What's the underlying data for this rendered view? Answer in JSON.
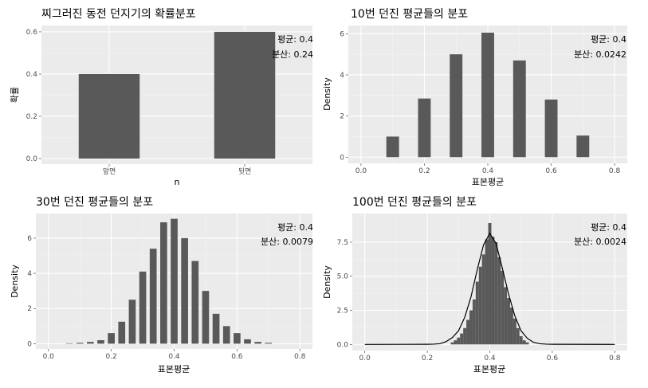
{
  "chart_data": [
    {
      "type": "bar",
      "title": "찌그러진 동전 던지기의 확률분포",
      "xlabel": "n",
      "ylabel": "확률",
      "categories": [
        "앞면",
        "뒷면"
      ],
      "values": [
        0.4,
        0.6
      ],
      "ylim": [
        0,
        0.63
      ],
      "yticks": [
        0.0,
        0.2,
        0.4,
        0.6
      ],
      "ytick_labels": [
        "0.0",
        "0.2",
        "0.4",
        "0.6"
      ],
      "annotations": [
        "평균: 0.4",
        "분산: 0.24"
      ],
      "grid": true
    },
    {
      "type": "bar",
      "title": "10번 던진 평균들의 분포",
      "xlabel": "표본평균",
      "ylabel": "Density",
      "x": [
        0.1,
        0.2,
        0.3,
        0.4,
        0.5,
        0.6,
        0.7
      ],
      "values": [
        1.0,
        2.85,
        5.0,
        6.05,
        4.7,
        2.8,
        1.05
      ],
      "bar_width": 0.04,
      "xlim": [
        -0.04,
        0.84
      ],
      "ylim": [
        -0.3,
        6.4
      ],
      "xticks": [
        0.0,
        0.2,
        0.4,
        0.6,
        0.8
      ],
      "xtick_labels": [
        "0.0",
        "0.2",
        "0.4",
        "0.6",
        "0.8"
      ],
      "yticks": [
        0,
        2,
        4,
        6
      ],
      "ytick_labels": [
        "0",
        "2",
        "4",
        "6"
      ],
      "annotations": [
        "평균: 0.4",
        "분산: 0.0242"
      ],
      "grid": true
    },
    {
      "type": "bar",
      "title": "30번 던진 평균들의 분포",
      "xlabel": "표본평균",
      "ylabel": "Density",
      "x": [
        0.0667,
        0.1,
        0.1333,
        0.1667,
        0.2,
        0.2333,
        0.2667,
        0.3,
        0.3333,
        0.3667,
        0.4,
        0.4333,
        0.4667,
        0.5,
        0.5333,
        0.5667,
        0.6,
        0.6333,
        0.6667,
        0.7
      ],
      "values": [
        0.02,
        0.05,
        0.1,
        0.2,
        0.6,
        1.25,
        2.5,
        4.1,
        5.4,
        6.9,
        7.1,
        6.0,
        4.7,
        3.0,
        1.7,
        1.0,
        0.6,
        0.25,
        0.1,
        0.05
      ],
      "bar_width": 0.022,
      "xlim": [
        -0.04,
        0.84
      ],
      "ylim": [
        -0.3,
        7.4
      ],
      "xticks": [
        0.0,
        0.2,
        0.4,
        0.6,
        0.8
      ],
      "xtick_labels": [
        "0.0",
        "0.2",
        "0.4",
        "0.6",
        "0.8"
      ],
      "yticks": [
        0,
        2,
        4,
        6
      ],
      "ytick_labels": [
        "0",
        "2",
        "4",
        "6"
      ],
      "annotations": [
        "평균: 0.4",
        "분산: 0.0079"
      ],
      "grid": true
    },
    {
      "type": "bar",
      "title": "100번 던진 평균들의 분포",
      "xlabel": "표본평균",
      "ylabel": "Density",
      "bar_width": 0.01,
      "x": [
        0.28,
        0.29,
        0.3,
        0.31,
        0.32,
        0.33,
        0.34,
        0.35,
        0.36,
        0.37,
        0.38,
        0.39,
        0.4,
        0.41,
        0.42,
        0.43,
        0.44,
        0.45,
        0.46,
        0.47,
        0.48,
        0.49,
        0.5,
        0.51,
        0.52
      ],
      "values": [
        0.15,
        0.3,
        0.5,
        0.8,
        1.2,
        1.8,
        2.5,
        3.3,
        4.6,
        5.7,
        6.6,
        7.7,
        8.9,
        7.9,
        7.5,
        6.4,
        5.4,
        4.2,
        3.4,
        2.7,
        1.9,
        1.2,
        0.6,
        0.3,
        0.15
      ],
      "density_curve": {
        "x": [
          0.2,
          0.22,
          0.24,
          0.26,
          0.28,
          0.3,
          0.32,
          0.34,
          0.36,
          0.38,
          0.4,
          0.42,
          0.44,
          0.46,
          0.48,
          0.5,
          0.52,
          0.54,
          0.56,
          0.58,
          0.6
        ],
        "y": [
          0.01,
          0.02,
          0.05,
          0.2,
          0.5,
          1.0,
          2.0,
          3.5,
          5.5,
          7.3,
          8.15,
          7.4,
          5.6,
          3.7,
          2.1,
          1.0,
          0.45,
          0.15,
          0.05,
          0.02,
          0.01
        ]
      },
      "xlim": [
        -0.04,
        0.84
      ],
      "ylim": [
        -0.45,
        9.6
      ],
      "xticks": [
        0.0,
        0.2,
        0.4,
        0.6,
        0.8
      ],
      "xtick_labels": [
        "0.0",
        "0.2",
        "0.4",
        "0.6",
        "0.8"
      ],
      "yticks": [
        0.0,
        2.5,
        5.0,
        7.5
      ],
      "ytick_labels": [
        "0.0",
        "2.5",
        "5.0",
        "7.5"
      ],
      "annotations": [
        "평균: 0.4",
        "분산: 0.0024"
      ],
      "grid": true
    }
  ]
}
